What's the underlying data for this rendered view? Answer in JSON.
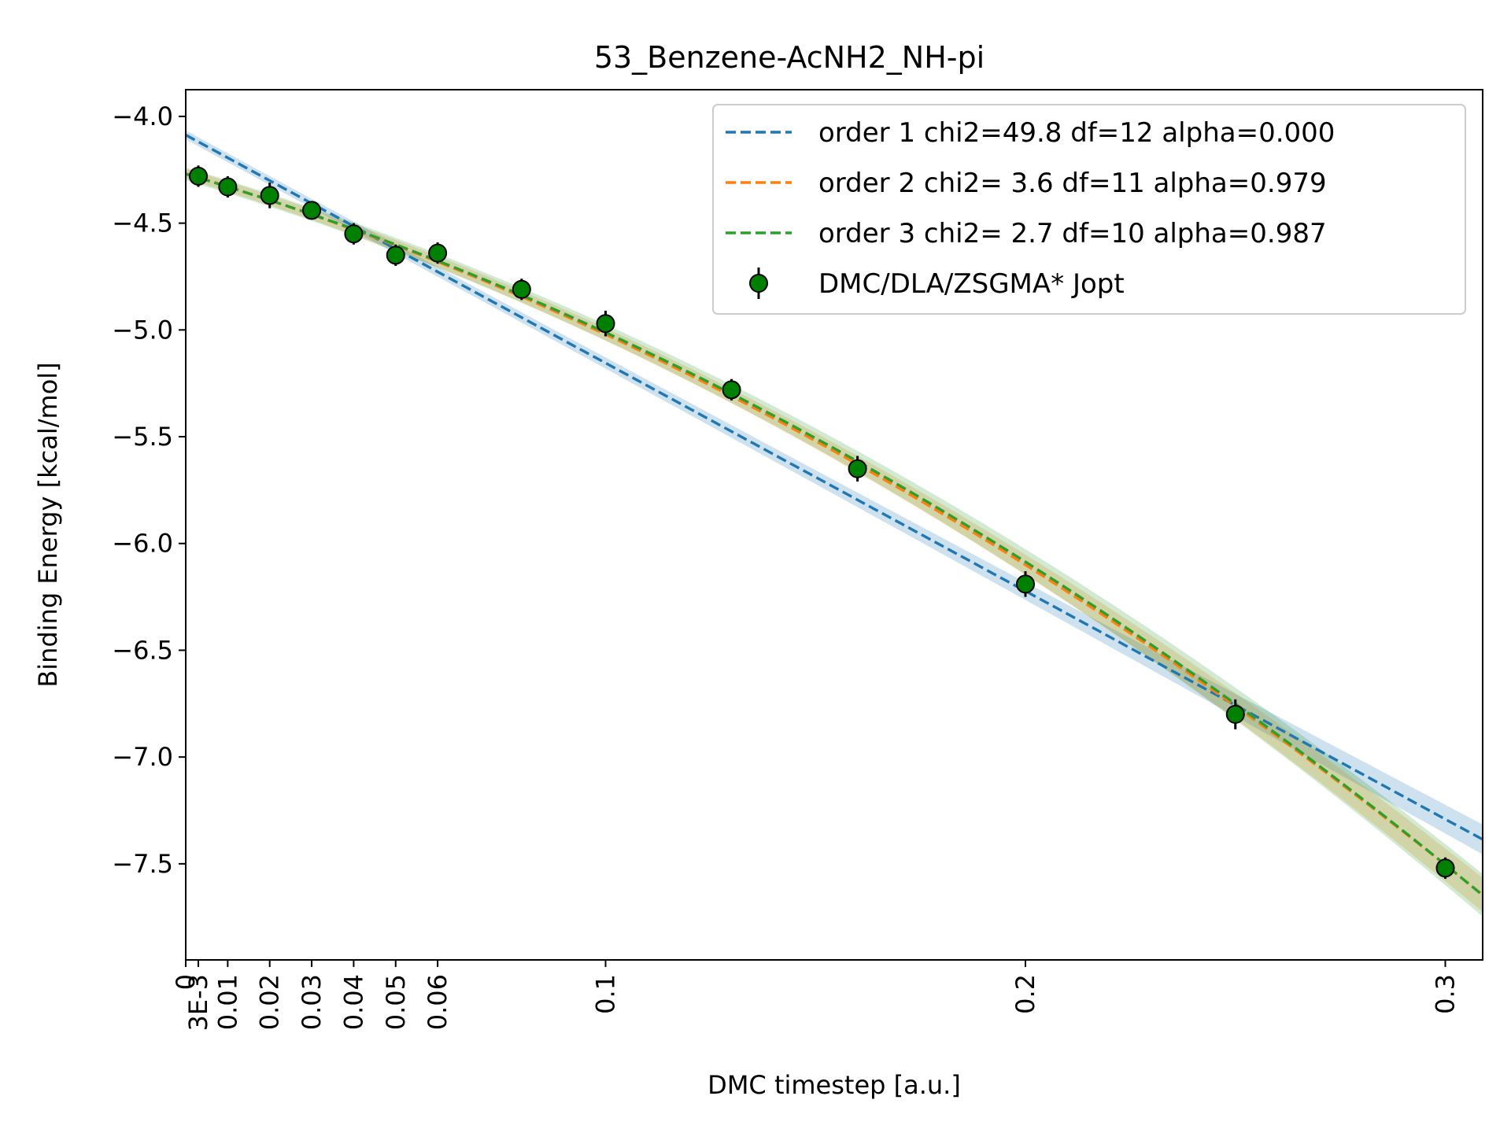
{
  "chart_data": {
    "type": "scatter",
    "title": "53_Benzene-AcNH2_NH-pi",
    "xlabel": "DMC timestep [a.u.]",
    "ylabel": "Binding Energy [kcal/mol]",
    "xlim": [
      0,
      0.3089
    ],
    "ylim": [
      -7.95,
      -3.875
    ],
    "grid": false,
    "legend_position": "top-right",
    "x_ticks": [
      {
        "value": 0,
        "label": "0"
      },
      {
        "value": 0.003,
        "label": "3E-3"
      },
      {
        "value": 0.01,
        "label": "0.01"
      },
      {
        "value": 0.02,
        "label": "0.02"
      },
      {
        "value": 0.03,
        "label": "0.03"
      },
      {
        "value": 0.04,
        "label": "0.04"
      },
      {
        "value": 0.05,
        "label": "0.05"
      },
      {
        "value": 0.06,
        "label": "0.06"
      },
      {
        "value": 0.1,
        "label": "0.1"
      },
      {
        "value": 0.2,
        "label": "0.2"
      },
      {
        "value": 0.3,
        "label": "0.3"
      }
    ],
    "y_ticks": [
      {
        "value": -4.0,
        "label": "−4.0"
      },
      {
        "value": -4.5,
        "label": "−4.5"
      },
      {
        "value": -5.0,
        "label": "−5.0"
      },
      {
        "value": -5.5,
        "label": "−5.5"
      },
      {
        "value": -6.0,
        "label": "−6.0"
      },
      {
        "value": -6.5,
        "label": "−6.5"
      },
      {
        "value": -7.0,
        "label": "−7.0"
      },
      {
        "value": -7.5,
        "label": "−7.5"
      }
    ],
    "fits": [
      {
        "name": "order 1 chi2=49.8 df=12 alpha=0.000",
        "color": "#1f77b4",
        "coefficients": [
          -4.087,
          -10.68
        ],
        "band": 0.035
      },
      {
        "name": "order 2 chi2= 3.6 df=11 alpha=0.979",
        "color": "#ff7f0e",
        "coefficients": [
          -4.268,
          -5.9,
          -16.3
        ],
        "band": 0.04
      },
      {
        "name": "order 3 chi2= 2.7 df=10 alpha=0.987",
        "color": "#2ca02c",
        "coefficients": [
          -4.27,
          -5.8,
          -16.0,
          -2.0
        ],
        "band": 0.05
      }
    ],
    "series": [
      {
        "name": "DMC/DLA/ZSGMA* Jopt",
        "marker_color": "#008000",
        "x": [
          0.003,
          0.01,
          0.02,
          0.03,
          0.04,
          0.05,
          0.06,
          0.08,
          0.1,
          0.13,
          0.16,
          0.2,
          0.25,
          0.3
        ],
        "y": [
          -4.28,
          -4.33,
          -4.37,
          -4.44,
          -4.55,
          -4.65,
          -4.64,
          -4.81,
          -4.97,
          -5.28,
          -5.65,
          -6.19,
          -6.8,
          -7.52
        ],
        "yerr": [
          0.05,
          0.05,
          0.06,
          0.04,
          0.05,
          0.05,
          0.05,
          0.05,
          0.06,
          0.05,
          0.06,
          0.06,
          0.07,
          0.05
        ]
      }
    ]
  }
}
